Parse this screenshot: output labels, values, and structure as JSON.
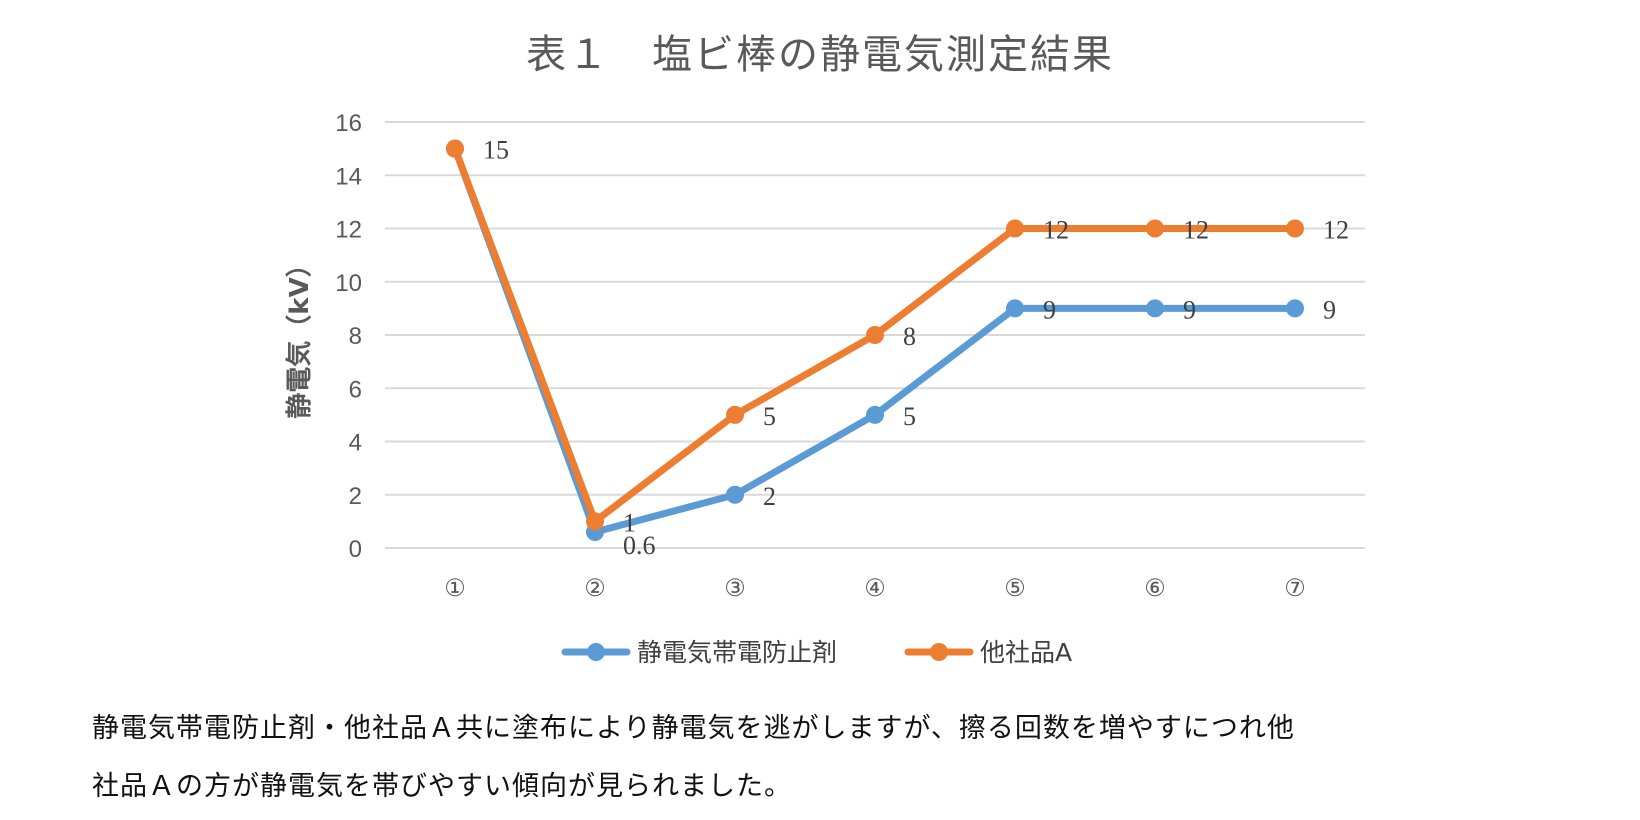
{
  "chart_data": {
    "type": "line",
    "title": "表１　塩ビ棒の静電気測定結果",
    "ylabel": "静電気（kV）",
    "xlabel": "",
    "categories": [
      "①",
      "②",
      "③",
      "④",
      "⑤",
      "⑥",
      "⑦"
    ],
    "ylim": [
      0,
      16
    ],
    "yticks": [
      0,
      2,
      4,
      6,
      8,
      10,
      12,
      14,
      16
    ],
    "grid": true,
    "legend": "bottom",
    "series": [
      {
        "name": "静電気帯電防止剤",
        "color": "#5B9BD5",
        "values": [
          15,
          0.6,
          2,
          5,
          9,
          9,
          9
        ],
        "labels": [
          "",
          "0.6",
          "2",
          "5",
          "9",
          "9",
          "9"
        ]
      },
      {
        "name": "他社品A",
        "color": "#ED7D31",
        "values": [
          15,
          1,
          5,
          8,
          12,
          12,
          12
        ],
        "labels": [
          "15",
          "1",
          "5",
          "8",
          "12",
          "12",
          "12"
        ]
      }
    ]
  },
  "caption": {
    "line1": "静電気帯電防止剤・他社品Ａ共に塗布により静電気を逃がしますが、擦る回数を増やすにつれ他",
    "line2": "社品Ａの方が静電気を帯びやすい傾向が見られました。"
  }
}
